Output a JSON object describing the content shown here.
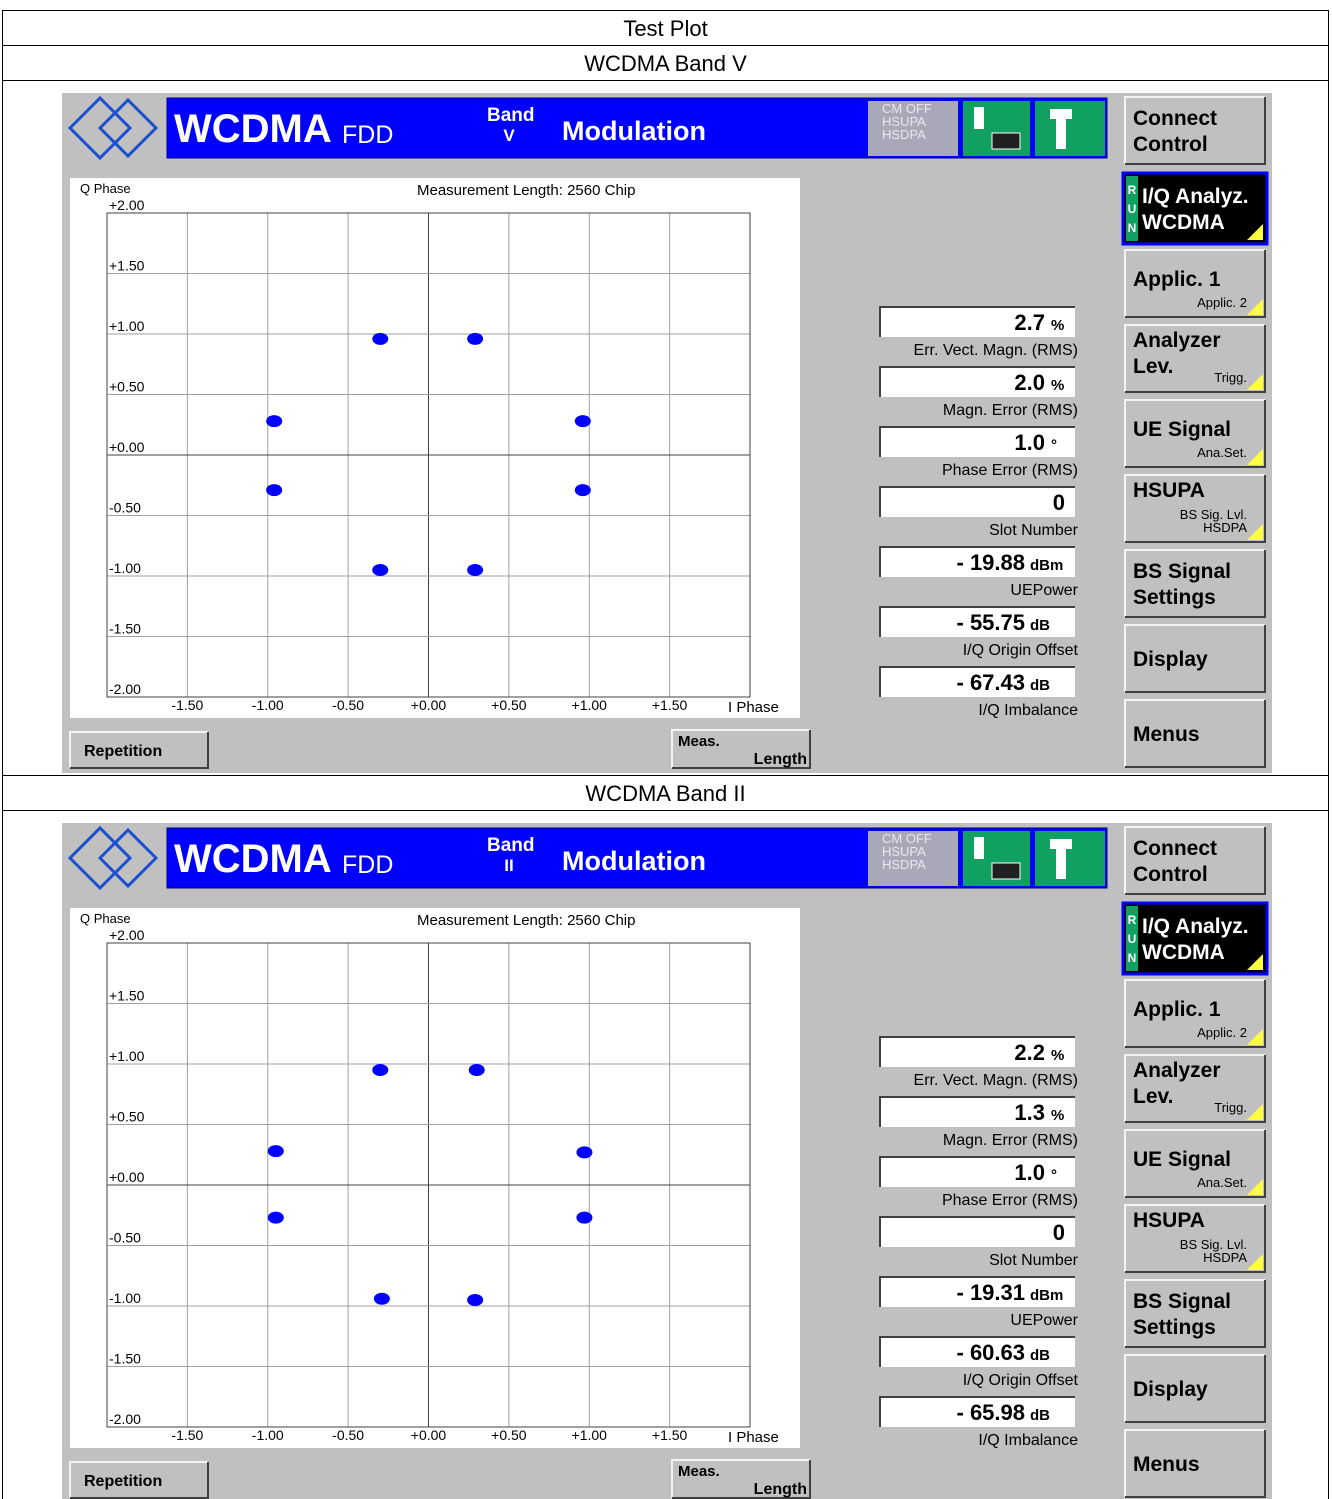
{
  "header": {
    "title": "Test Plot"
  },
  "panels": [
    {
      "caption": "WCDMA Band V",
      "screen": {
        "title": {
          "main": "WCDMA",
          "mode": "FDD",
          "band_label": "Band",
          "band": "V",
          "function": "Modulation"
        },
        "status": [
          "CM OFF",
          "HSUPA",
          "HSDPA"
        ],
        "softkeys": [
          {
            "lines": [
              "Connect",
              "Control"
            ]
          },
          {
            "lines": [
              "I/Q Analyz.",
              "WCDMA"
            ],
            "run": [
              "R",
              "U",
              "N"
            ],
            "active": true
          },
          {
            "lines": [
              "Applic. 1"
            ],
            "subs": [
              "Applic. 2"
            ]
          },
          {
            "lines": [
              "Analyzer",
              "Lev."
            ],
            "subs": [
              "Trigg."
            ]
          },
          {
            "lines": [
              "UE Signal"
            ],
            "subs": [
              "Ana.Set."
            ]
          },
          {
            "lines": [
              "HSUPA"
            ],
            "subs": [
              "BS Sig. Lvl.",
              "HSDPA"
            ]
          },
          {
            "lines": [
              "BS Signal",
              "Settings"
            ]
          },
          {
            "lines": [
              "Display"
            ]
          },
          {
            "lines": [
              "Menus"
            ]
          }
        ],
        "plot": {
          "title": "Measurement Length: 2560 Chip",
          "y_label": "Q Phase",
          "x_label": "I Phase",
          "xlim": [
            -2,
            2
          ],
          "ylim": [
            -2,
            2
          ],
          "xticks": [
            {
              "value": -1.5,
              "label": "-1.50"
            },
            {
              "value": -1,
              "label": "-1.00"
            },
            {
              "value": -0.5,
              "label": "-0.50"
            },
            {
              "value": 0,
              "label": "+0.00"
            },
            {
              "value": 0.5,
              "label": "+0.50"
            },
            {
              "value": 1,
              "label": "+1.00"
            },
            {
              "value": 1.5,
              "label": "+1.50"
            }
          ],
          "yticks": [
            {
              "value": 2,
              "label": "+2.00"
            },
            {
              "value": 1.5,
              "label": "+1.50"
            },
            {
              "value": 1,
              "label": "+1.00"
            },
            {
              "value": 0.5,
              "label": "+0.50"
            },
            {
              "value": 0,
              "label": "+0.00"
            },
            {
              "value": -0.5,
              "label": "-0.50"
            },
            {
              "value": -1,
              "label": "-1.00"
            },
            {
              "value": -1.5,
              "label": "-1.50"
            },
            {
              "value": -2,
              "label": "-2.00"
            }
          ],
          "color": "#0000ff",
          "x": [
            -0.3,
            0.29,
            -0.96,
            0.96,
            -0.96,
            0.96,
            -0.3,
            0.29
          ],
          "y": [
            0.96,
            0.96,
            0.28,
            0.28,
            -0.29,
            -0.29,
            -0.95,
            -0.95
          ]
        },
        "results": [
          {
            "value": "2.7",
            "unit": "%",
            "label": "Err. Vect. Magn. (RMS)"
          },
          {
            "value": "2.0",
            "unit": "%",
            "label": "Magn. Error (RMS)"
          },
          {
            "value": "1.0",
            "unit": "°",
            "label": "Phase Error (RMS)"
          },
          {
            "value": "0",
            "label": "Slot Number"
          },
          {
            "value": "- 19.88",
            "unit": "dBm",
            "label": "UEPower"
          },
          {
            "value": "- 55.75",
            "unit": "dB",
            "label": "I/Q Origin Offset"
          },
          {
            "value": "- 67.43",
            "unit": "dB",
            "label": "I/Q Imbalance"
          }
        ],
        "buttons": {
          "repetition": "Repetition",
          "meas": [
            "Meas.",
            "Length"
          ]
        }
      }
    },
    {
      "caption": "WCDMA Band II",
      "screen": {
        "title": {
          "main": "WCDMA",
          "mode": "FDD",
          "band_label": "Band",
          "band": "II",
          "function": "Modulation"
        },
        "status": [
          "CM OFF",
          "HSUPA",
          "HSDPA"
        ],
        "softkeys": [
          {
            "lines": [
              "Connect",
              "Control"
            ]
          },
          {
            "lines": [
              "I/Q Analyz.",
              "WCDMA"
            ],
            "run": [
              "R",
              "U",
              "N"
            ],
            "active": true
          },
          {
            "lines": [
              "Applic. 1"
            ],
            "subs": [
              "Applic. 2"
            ]
          },
          {
            "lines": [
              "Analyzer",
              "Lev."
            ],
            "subs": [
              "Trigg."
            ]
          },
          {
            "lines": [
              "UE Signal"
            ],
            "subs": [
              "Ana.Set."
            ]
          },
          {
            "lines": [
              "HSUPA"
            ],
            "subs": [
              "BS Sig. Lvl.",
              "HSDPA"
            ]
          },
          {
            "lines": [
              "BS Signal",
              "Settings"
            ]
          },
          {
            "lines": [
              "Display"
            ]
          },
          {
            "lines": [
              "Menus"
            ]
          }
        ],
        "plot": {
          "title": "Measurement Length: 2560 Chip",
          "y_label": "Q Phase",
          "x_label": "I Phase",
          "xlim": [
            -2,
            2
          ],
          "ylim": [
            -2,
            2
          ],
          "xticks": [
            {
              "value": -1.5,
              "label": "-1.50"
            },
            {
              "value": -1,
              "label": "-1.00"
            },
            {
              "value": -0.5,
              "label": "-0.50"
            },
            {
              "value": 0,
              "label": "+0.00"
            },
            {
              "value": 0.5,
              "label": "+0.50"
            },
            {
              "value": 1,
              "label": "+1.00"
            },
            {
              "value": 1.5,
              "label": "+1.50"
            }
          ],
          "yticks": [
            {
              "value": 2,
              "label": "+2.00"
            },
            {
              "value": 1.5,
              "label": "+1.50"
            },
            {
              "value": 1,
              "label": "+1.00"
            },
            {
              "value": 0.5,
              "label": "+0.50"
            },
            {
              "value": 0,
              "label": "+0.00"
            },
            {
              "value": -0.5,
              "label": "-0.50"
            },
            {
              "value": -1,
              "label": "-1.00"
            },
            {
              "value": -1.5,
              "label": "-1.50"
            },
            {
              "value": -2,
              "label": "-2.00"
            }
          ],
          "color": "#0000ff",
          "x": [
            -0.3,
            0.3,
            -0.95,
            0.97,
            -0.95,
            0.97,
            -0.29,
            0.29
          ],
          "y": [
            0.95,
            0.95,
            0.28,
            0.27,
            -0.27,
            -0.27,
            -0.94,
            -0.95
          ]
        },
        "results": [
          {
            "value": "2.2",
            "unit": "%",
            "label": "Err. Vect. Magn. (RMS)"
          },
          {
            "value": "1.3",
            "unit": "%",
            "label": "Magn. Error (RMS)"
          },
          {
            "value": "1.0",
            "unit": "°",
            "label": "Phase Error (RMS)"
          },
          {
            "value": "0",
            "label": "Slot Number"
          },
          {
            "value": "- 19.31",
            "unit": "dBm",
            "label": "UEPower"
          },
          {
            "value": "- 60.63",
            "unit": "dB",
            "label": "I/Q Origin Offset"
          },
          {
            "value": "- 65.98",
            "unit": "dB",
            "label": "I/Q Imbalance"
          }
        ],
        "buttons": {
          "repetition": "Repetition",
          "meas": [
            "Meas.",
            "Length"
          ]
        }
      }
    }
  ]
}
